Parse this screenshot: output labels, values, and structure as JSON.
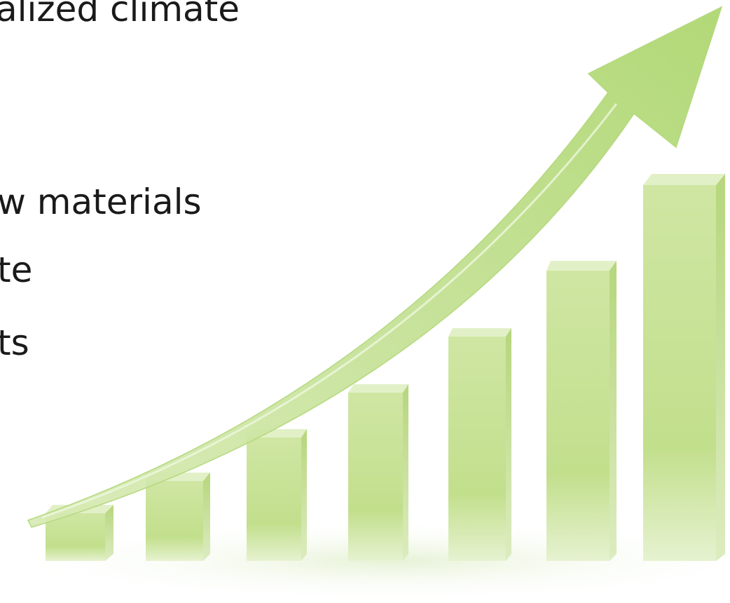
{
  "slide": {
    "lines": [
      "alized climate",
      "w materials",
      "te",
      "ts"
    ]
  }
}
